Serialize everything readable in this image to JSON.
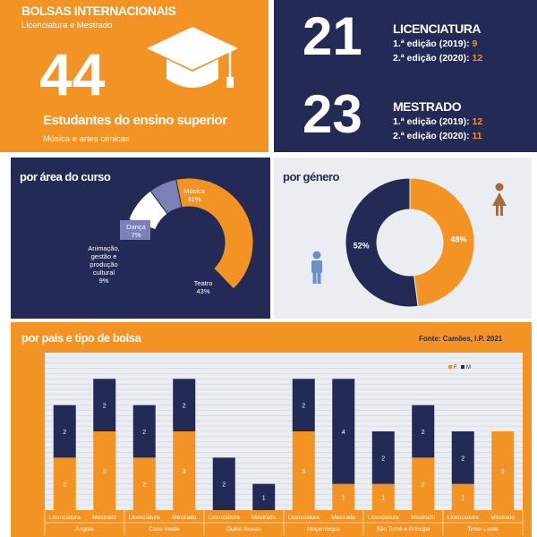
{
  "header": {
    "title": "BOLSAS INTERNACIONAIS",
    "subtitle": "Licenciatura e Mestrado",
    "total": "44",
    "total_label": "Estudantes do ensino superior",
    "total_sublabel": "Música e artes cénicas",
    "icon": "graduation-cap-icon"
  },
  "degrees": [
    {
      "count": "21",
      "name": "LICENCIATURA",
      "edition1_label": "1.ª edição (2019):",
      "edition1_value": "9",
      "edition2_label": "2.ª edição (2020):",
      "edition2_value": "12"
    },
    {
      "count": "23",
      "name": "MESTRADO",
      "edition1_label": "1.ª edição (2019):",
      "edition1_value": "12",
      "edition2_label": "2.ª edição (2020):",
      "edition2_value": "11"
    }
  ],
  "area_chart": {
    "title": "por área do curso"
  },
  "gender_chart": {
    "title": "por género",
    "female_icon": "female-person-icon",
    "male_icon": "male-person-icon"
  },
  "country_chart": {
    "title": "por país e tipo de bolsa",
    "source": "Fonte: Camões, I.P. 2021"
  },
  "colors": {
    "orange": "#f39323",
    "navy": "#242a56",
    "light": "#eaeef2",
    "lavender": "#7b80b5",
    "white": "#ffffff",
    "male_blue": "#6a8fc9",
    "female_brown": "#a86c3a"
  },
  "chart_data": [
    {
      "type": "pie",
      "title": "por área do curso",
      "donut": true,
      "slices": [
        {
          "label": "Música",
          "value": 41,
          "pct": "41%",
          "color": "#f39323"
        },
        {
          "label": "Teatro",
          "value": 43,
          "pct": "43%",
          "color": "#242a56"
        },
        {
          "label": "Animação, gestão e produção cultural",
          "value": 9,
          "pct": "9%",
          "color": "#ffffff"
        },
        {
          "label": "Dança",
          "value": 7,
          "pct": "7%",
          "color": "#7b80b5"
        }
      ]
    },
    {
      "type": "pie",
      "title": "por género",
      "donut": true,
      "slices": [
        {
          "label": "",
          "value": 48,
          "pct": "48%",
          "color": "#f39323"
        },
        {
          "label": "",
          "value": 52,
          "pct": "52%",
          "color": "#242a56"
        }
      ]
    },
    {
      "type": "bar",
      "stacked": true,
      "title": "por país e tipo de bolsa",
      "legend": [
        "F",
        "M"
      ],
      "legend_position": "top-right",
      "categories": [
        "Licenciatura",
        "Mestrado",
        "Licenciatura",
        "Mestrado",
        "Licenciatura",
        "Mestrado",
        "Licenciatura",
        "Mestrado",
        "Licenciatura",
        "Mestrado",
        "Licenciatura",
        "Mestrado"
      ],
      "groups": [
        "Angola",
        "Cabo Verde",
        "Guiné-Bissau",
        "Moçambique",
        "São Tomé e Príncipe",
        "Timor-Leste"
      ],
      "series": [
        {
          "name": "F",
          "color": "#f39323",
          "values": [
            2,
            3,
            2,
            3,
            0,
            0,
            3,
            1,
            1,
            2,
            1,
            3
          ]
        },
        {
          "name": "M",
          "color": "#242a56",
          "values": [
            2,
            2,
            2,
            2,
            2,
            1,
            2,
            4,
            2,
            2,
            2,
            0
          ]
        }
      ],
      "ylim": [
        0,
        6
      ],
      "grid": true
    }
  ]
}
